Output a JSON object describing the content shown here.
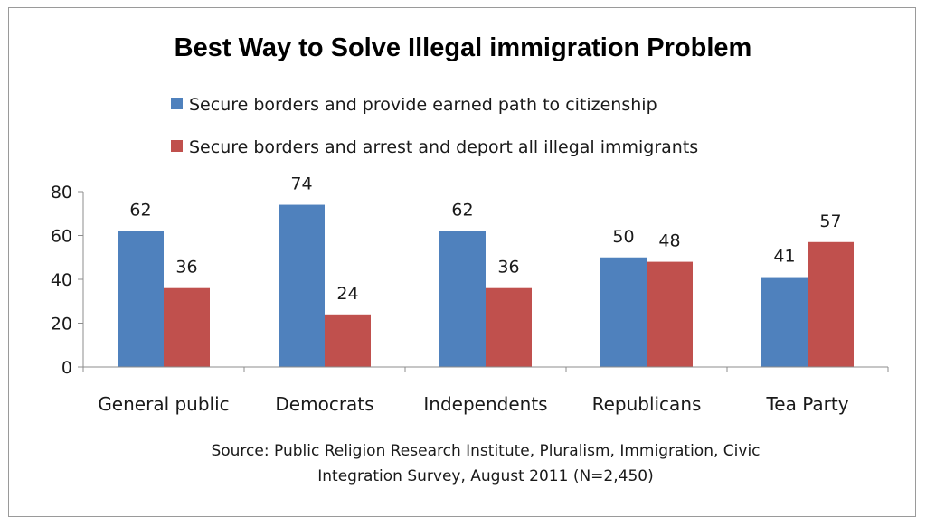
{
  "chart_data": {
    "type": "bar",
    "title": "Best Way to Solve Illegal immigration  Problem",
    "categories": [
      "General public",
      "Democrats",
      "Independents",
      "Republicans",
      "Tea Party"
    ],
    "series": [
      {
        "name": "Secure borders and provide earned path to citizenship",
        "color": "#4F81BD",
        "values": [
          62,
          74,
          62,
          50,
          41
        ]
      },
      {
        "name": "Secure borders and arrest and deport all illegal immigrants",
        "color": "#C0504D",
        "values": [
          36,
          24,
          36,
          48,
          57
        ]
      }
    ],
    "ylim": [
      0,
      80
    ],
    "yticks": [
      0,
      20,
      40,
      60,
      80
    ],
    "xlabel": "",
    "ylabel": "",
    "grid": false,
    "legend_position": "top",
    "data_labels": true,
    "source_lines": [
      "Source: Public Religion Research Institute,  Pluralism, Immigration, Civic",
      "Integration Survey, August  2011 (N=2,450)"
    ]
  }
}
